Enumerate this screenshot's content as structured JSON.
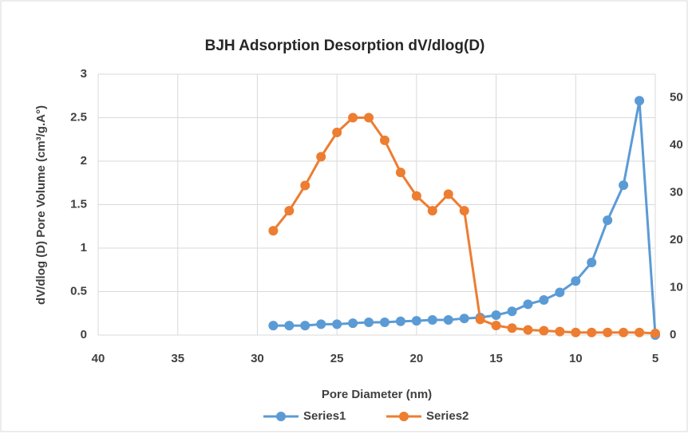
{
  "chart_data": {
    "type": "line",
    "title": "BJH Adsorption Desorption dV/dlog(D)",
    "x_label": "Pore Diameter (nm)",
    "y_label": "dV/dlog (D) Pore Volume (cm³/g.A°)",
    "x": [
      29,
      28,
      27,
      26,
      25,
      24,
      23,
      22,
      21,
      20,
      19,
      18,
      17,
      16,
      15,
      14,
      13,
      12,
      11,
      10,
      9,
      8,
      7,
      6,
      5
    ],
    "series": [
      {
        "name": "Series1",
        "color": "#5b9bd5",
        "axis": "y2",
        "values": [
          2,
          2,
          2,
          2.3,
          2.3,
          2.5,
          2.7,
          2.7,
          2.9,
          3,
          3.2,
          3.2,
          3.5,
          3.7,
          4.2,
          5,
          6.5,
          7.4,
          9,
          11.4,
          15.3,
          24.2,
          31.6,
          49.4,
          0
        ]
      },
      {
        "name": "Series2",
        "color": "#ed7d31",
        "values": [
          1.2,
          1.43,
          1.72,
          2.05,
          2.33,
          2.5,
          2.5,
          2.24,
          1.87,
          1.6,
          1.43,
          1.62,
          1.43,
          0.18,
          0.11,
          0.08,
          0.06,
          0.05,
          0.04,
          0.03,
          0.03,
          0.03,
          0.03,
          0.03,
          0.02
        ]
      }
    ],
    "xlim": [
      40,
      5
    ],
    "xticks": [
      40,
      35,
      30,
      25,
      20,
      15,
      10,
      5
    ],
    "ylim": [
      0,
      3
    ],
    "yticks": [
      0,
      0.5,
      1,
      1.5,
      2,
      2.5,
      3
    ],
    "y2lim": [
      0,
      55
    ],
    "y2ticks": [
      0,
      10,
      20,
      30,
      40,
      50
    ],
    "grid": true,
    "legend": "bottom"
  }
}
